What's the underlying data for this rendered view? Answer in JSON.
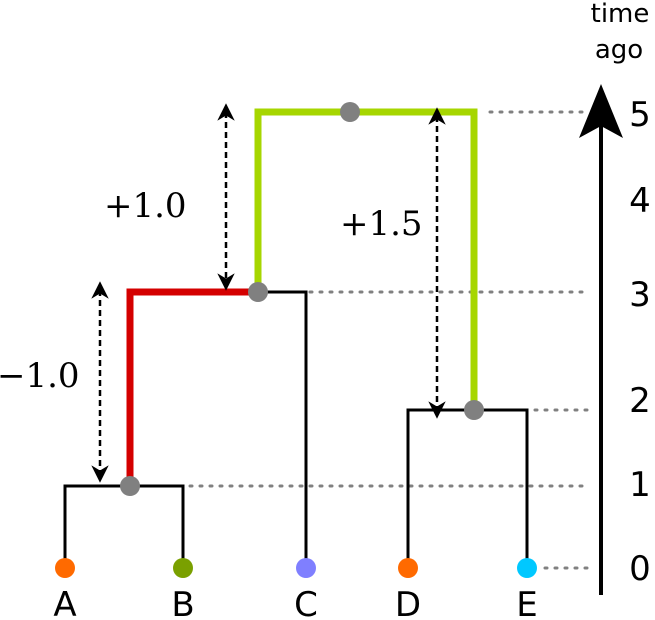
{
  "axis": {
    "title_line1": "time",
    "title_line2": "ago",
    "ticks": [
      "5",
      "4",
      "3",
      "2",
      "1",
      "0"
    ]
  },
  "annotations": {
    "left_shift": "−1.0",
    "mid_shift": "+1.0",
    "right_shift": "+1.5"
  },
  "tips": [
    {
      "label": "A",
      "color": "#ff6a00"
    },
    {
      "label": "B",
      "color": "#7aa000"
    },
    {
      "label": "C",
      "color": "#7f7fff"
    },
    {
      "label": "D",
      "color": "#ff6a00"
    },
    {
      "label": "E",
      "color": "#00c8ff"
    }
  ],
  "colors": {
    "branch": "#000000",
    "highlight_red": "#d40000",
    "highlight_green": "#a6d600",
    "node": "#808080",
    "guide": "#808080"
  }
}
